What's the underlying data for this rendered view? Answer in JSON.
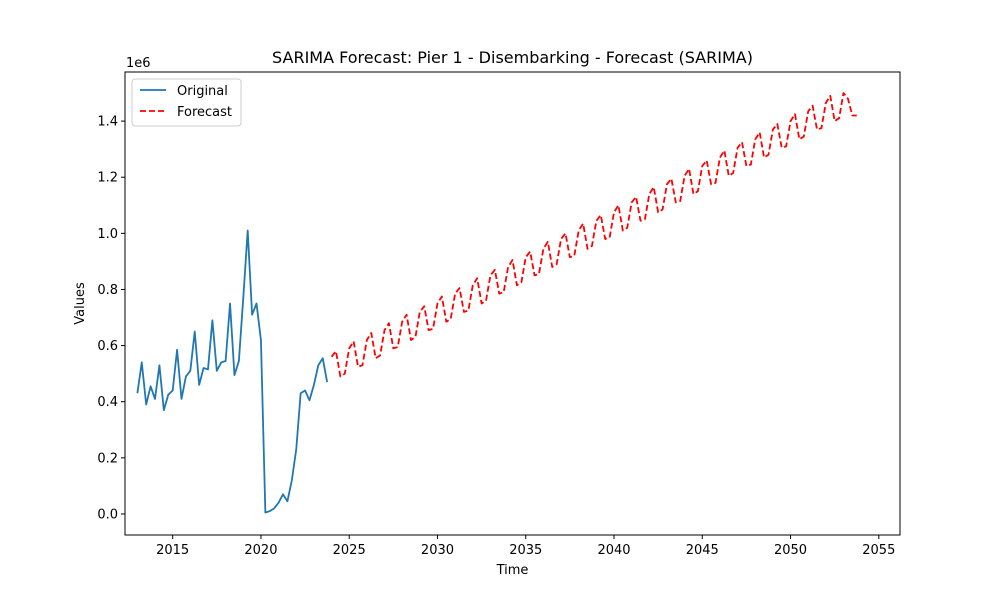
{
  "chart_data": {
    "type": "line",
    "title": "SARIMA Forecast: Pier 1 - Disembarking - Forecast (SARIMA)",
    "xlabel": "Time",
    "ylabel": "Values",
    "y_scale_label": "1e6",
    "xlim": [
      2012.3,
      2056.2
    ],
    "ylim": [
      -0.075,
      1.575
    ],
    "x_ticks": [
      2015,
      2020,
      2025,
      2030,
      2035,
      2040,
      2045,
      2050,
      2055
    ],
    "x_tick_labels": [
      "2015",
      "2020",
      "2025",
      "2030",
      "2035",
      "2040",
      "2045",
      "2050",
      "2055"
    ],
    "y_ticks": [
      0.0,
      0.2,
      0.4,
      0.6,
      0.8,
      1.0,
      1.2,
      1.4
    ],
    "y_tick_labels": [
      "0.0",
      "0.2",
      "0.4",
      "0.6",
      "0.8",
      "1.0",
      "1.2",
      "1.4"
    ],
    "legend_position": "upper-left",
    "grid": false,
    "series": [
      {
        "name": "Original",
        "color": "#1f77b4",
        "dash": "solid",
        "x": [
          2013.0,
          2013.25,
          2013.5,
          2013.75,
          2014.0,
          2014.25,
          2014.5,
          2014.75,
          2015.0,
          2015.25,
          2015.5,
          2015.75,
          2016.0,
          2016.25,
          2016.5,
          2016.75,
          2017.0,
          2017.25,
          2017.5,
          2017.75,
          2018.0,
          2018.25,
          2018.5,
          2018.75,
          2019.0,
          2019.25,
          2019.5,
          2019.75,
          2020.0,
          2020.25,
          2020.5,
          2020.75,
          2021.0,
          2021.25,
          2021.5,
          2021.75,
          2022.0,
          2022.25,
          2022.5,
          2022.75,
          2023.0,
          2023.25,
          2023.5,
          2023.75
        ],
        "y": [
          0.43,
          0.54,
          0.39,
          0.455,
          0.41,
          0.53,
          0.37,
          0.425,
          0.44,
          0.585,
          0.41,
          0.49,
          0.51,
          0.65,
          0.46,
          0.52,
          0.515,
          0.69,
          0.51,
          0.54,
          0.545,
          0.75,
          0.495,
          0.545,
          0.77,
          1.01,
          0.71,
          0.75,
          0.62,
          0.005,
          0.01,
          0.02,
          0.04,
          0.07,
          0.045,
          0.12,
          0.23,
          0.43,
          0.44,
          0.405,
          0.46,
          0.53,
          0.555,
          0.47
        ]
      },
      {
        "name": "Forecast",
        "color": "#ff0000",
        "dash": "dashed",
        "x_start": 2024.0,
        "x_step": 0.25,
        "count": 120,
        "y": [
          0.56,
          0.58,
          0.49,
          0.5,
          0.59,
          0.615,
          0.525,
          0.53,
          0.62,
          0.645,
          0.555,
          0.565,
          0.655,
          0.68,
          0.59,
          0.595,
          0.685,
          0.71,
          0.62,
          0.63,
          0.72,
          0.74,
          0.655,
          0.66,
          0.75,
          0.775,
          0.685,
          0.695,
          0.785,
          0.805,
          0.72,
          0.725,
          0.815,
          0.84,
          0.75,
          0.76,
          0.85,
          0.87,
          0.785,
          0.79,
          0.88,
          0.905,
          0.815,
          0.825,
          0.915,
          0.935,
          0.85,
          0.855,
          0.945,
          0.97,
          0.88,
          0.89,
          0.98,
          1.0,
          0.915,
          0.92,
          1.01,
          1.035,
          0.945,
          0.955,
          1.045,
          1.065,
          0.98,
          0.985,
          1.075,
          1.1,
          1.01,
          1.02,
          1.11,
          1.13,
          1.045,
          1.05,
          1.14,
          1.165,
          1.075,
          1.085,
          1.175,
          1.195,
          1.11,
          1.115,
          1.205,
          1.23,
          1.14,
          1.15,
          1.24,
          1.26,
          1.175,
          1.18,
          1.27,
          1.295,
          1.205,
          1.215,
          1.305,
          1.325,
          1.24,
          1.245,
          1.335,
          1.36,
          1.27,
          1.28,
          1.37,
          1.39,
          1.305,
          1.31,
          1.4,
          1.425,
          1.335,
          1.345,
          1.435,
          1.455,
          1.37,
          1.375,
          1.465,
          1.49,
          1.4,
          1.41,
          1.5,
          1.48,
          1.42,
          1.42
        ]
      }
    ]
  }
}
